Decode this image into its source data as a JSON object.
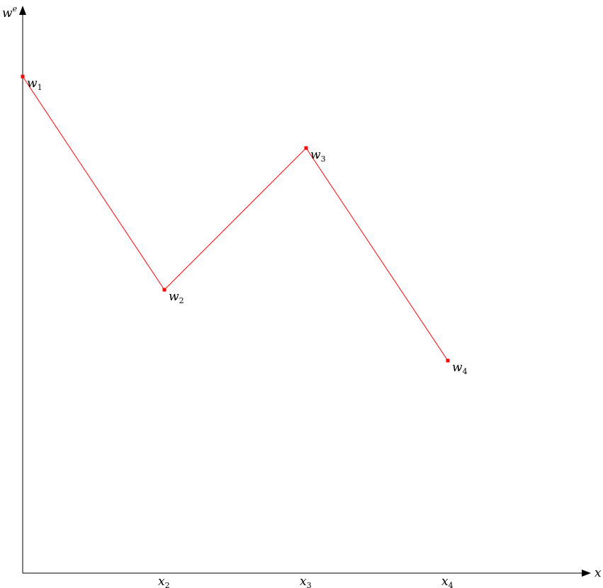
{
  "axes": {
    "y_label": "w",
    "y_label_sup": "e",
    "x_label": "x"
  },
  "ticks": [
    {
      "base": "x",
      "sub": "2"
    },
    {
      "base": "x",
      "sub": "3"
    },
    {
      "base": "x",
      "sub": "4"
    }
  ],
  "points": [
    {
      "base": "w",
      "sub": "1"
    },
    {
      "base": "w",
      "sub": "2"
    },
    {
      "base": "w",
      "sub": "3"
    },
    {
      "base": "w",
      "sub": "4"
    }
  ],
  "colors": {
    "axis": "#000000",
    "curve": "#ff0000",
    "points": "#ff0000"
  }
}
